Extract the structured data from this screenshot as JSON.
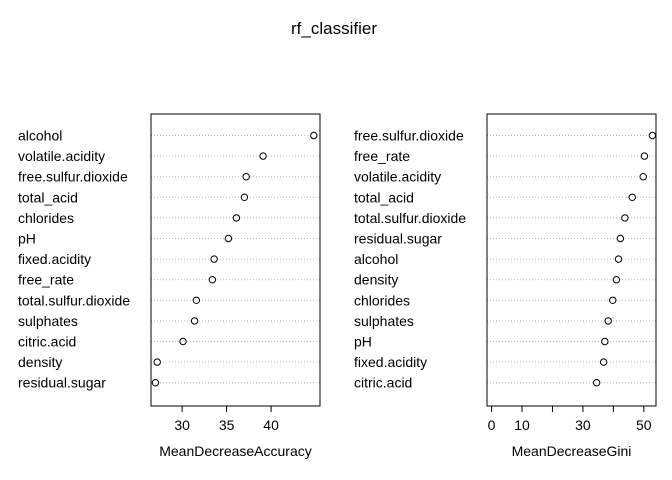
{
  "title": "rf_classifier",
  "chart_data": [
    {
      "type": "scatter",
      "xlabel": "MeanDecreaseAccuracy",
      "xlim": [
        26.5,
        45.5
      ],
      "xticks": [
        30,
        35,
        40
      ],
      "grid": true,
      "categories": [
        "alcohol",
        "volatile.acidity",
        "free.sulfur.dioxide",
        "total_acid",
        "chlorides",
        "pH",
        "fixed.acidity",
        "free_rate",
        "total.sulfur.dioxide",
        "sulphates",
        "citric.acid",
        "density",
        "residual.sugar"
      ],
      "values": [
        44.8,
        39.1,
        37.2,
        37.0,
        36.1,
        35.2,
        33.6,
        33.4,
        31.6,
        31.4,
        30.1,
        27.2,
        27.0
      ]
    },
    {
      "type": "scatter",
      "xlabel": "MeanDecreaseGini",
      "xlim": [
        -1.5,
        54
      ],
      "xticks": [
        0,
        10,
        30,
        50
      ],
      "minor_ticks": [
        20,
        40
      ],
      "grid": true,
      "categories": [
        "free.sulfur.dioxide",
        "free_rate",
        "volatile.acidity",
        "total_acid",
        "total.sulfur.dioxide",
        "residual.sugar",
        "alcohol",
        "density",
        "chlorides",
        "sulphates",
        "pH",
        "fixed.acidity",
        "citric.acid"
      ],
      "values": [
        52.8,
        50.2,
        49.8,
        46.2,
        43.8,
        42.3,
        41.7,
        41.0,
        39.8,
        38.3,
        37.2,
        36.8,
        34.5
      ]
    }
  ]
}
